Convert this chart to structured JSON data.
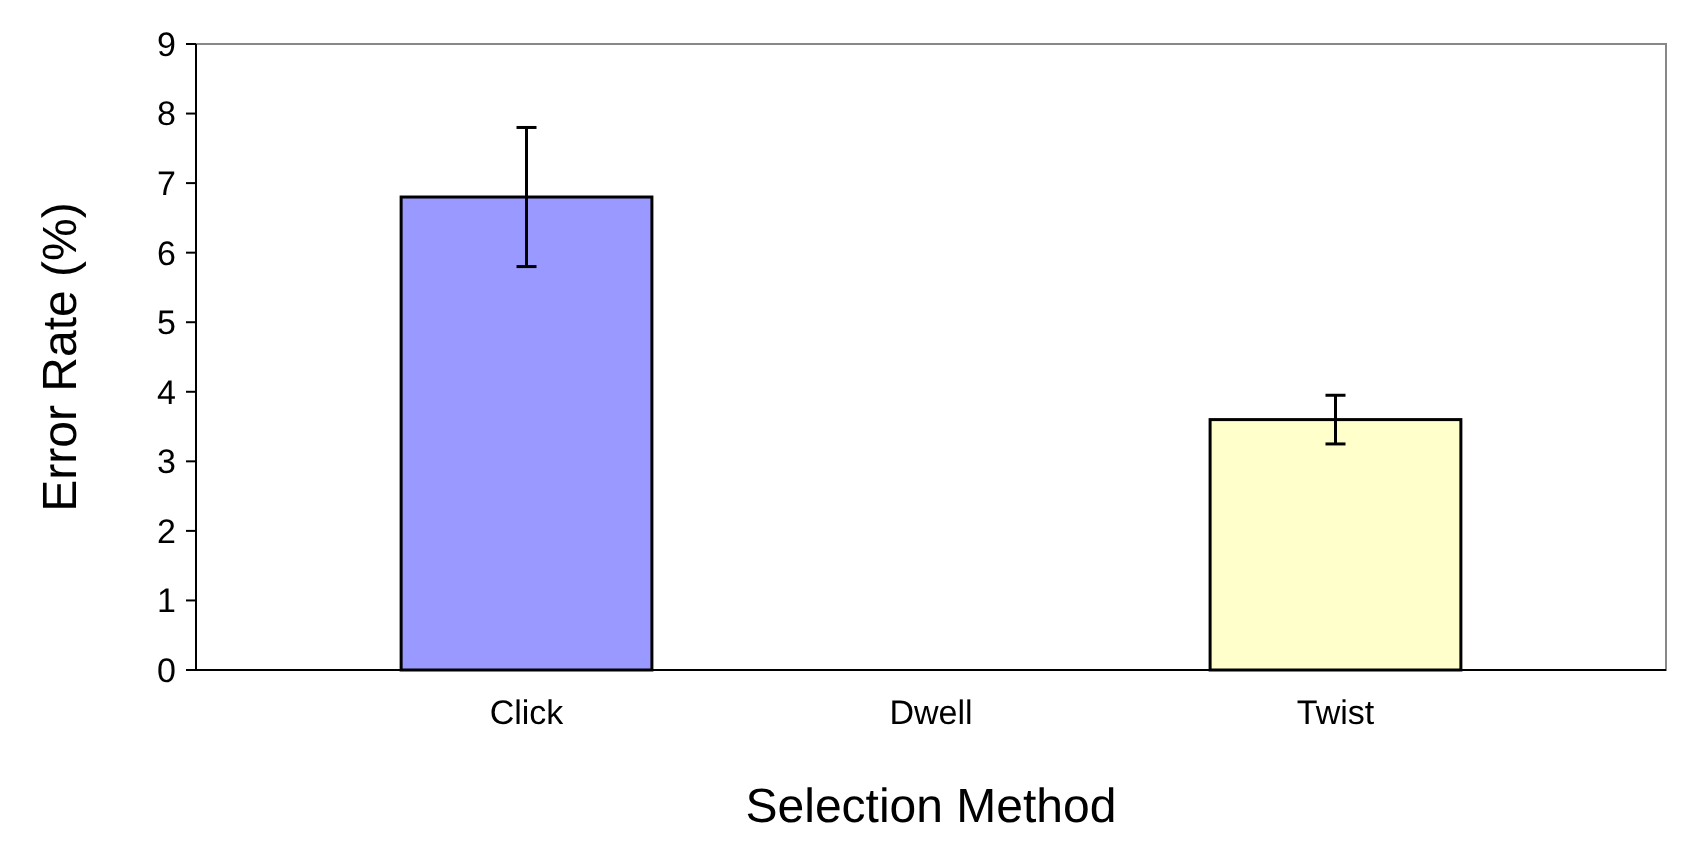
{
  "chart_data": {
    "type": "bar",
    "xlabel": "Selection Method",
    "ylabel": "Error Rate (%)",
    "categories": [
      "Click",
      "Dwell",
      "Twist"
    ],
    "values": [
      6.8,
      null,
      3.6
    ],
    "errors": [
      1.0,
      null,
      0.35
    ],
    "colors": [
      "#9999ff",
      null,
      "#ffffcc"
    ],
    "ylim": [
      0,
      9
    ],
    "yticks": [
      0,
      1,
      2,
      3,
      4,
      5,
      6,
      7,
      8,
      9
    ],
    "grid": false
  }
}
